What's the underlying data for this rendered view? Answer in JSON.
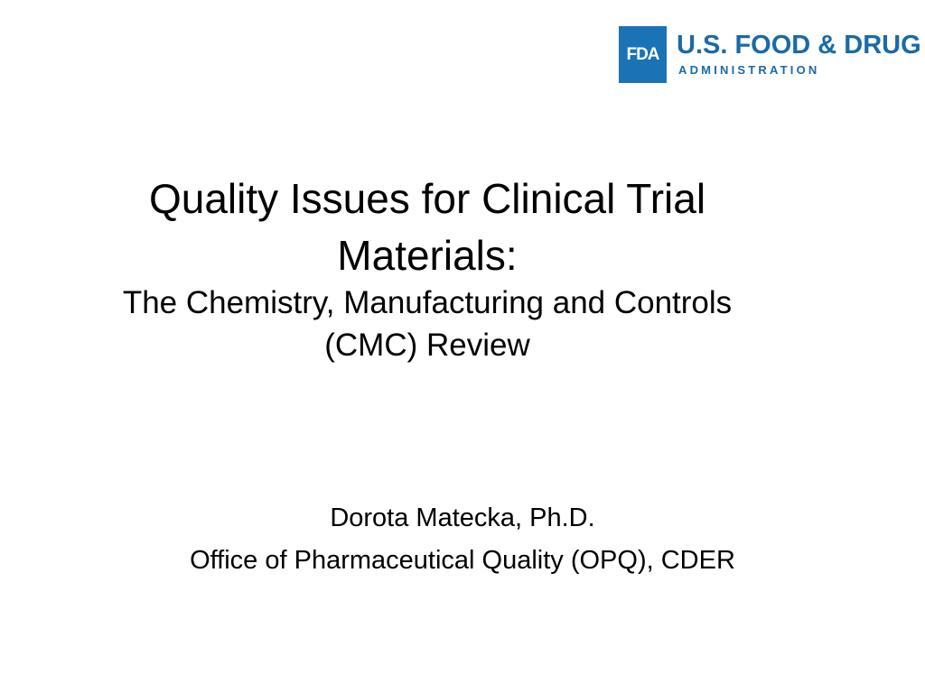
{
  "logo": {
    "mark": "FDA",
    "name": "U.S. FOOD & DRUG",
    "sub": "ADMINISTRATION",
    "color": "#1a73b5"
  },
  "slide": {
    "title_line1": "Quality Issues for Clinical Trial",
    "title_line2": "Materials:",
    "subtitle_line1": "The Chemistry, Manufacturing and Controls",
    "subtitle_line2": "(CMC) Review",
    "author": "Dorota Matecka, Ph.D.",
    "affiliation": "Office of Pharmaceutical Quality (OPQ), CDER"
  }
}
